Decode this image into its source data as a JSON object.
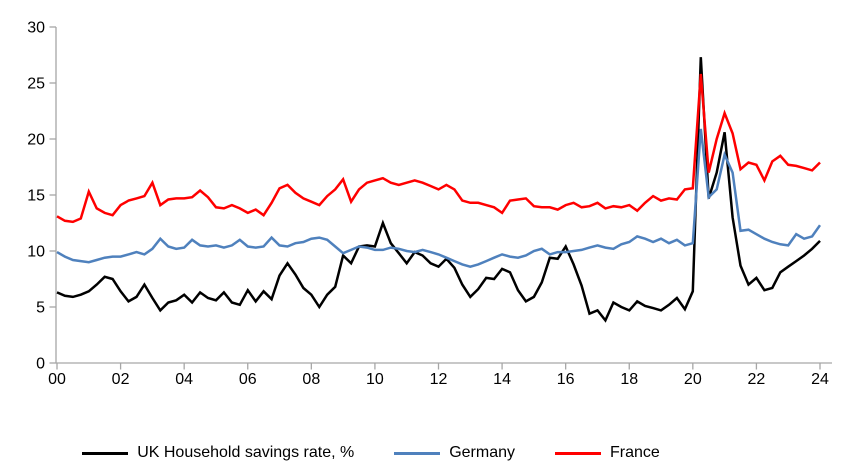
{
  "chart_data": {
    "type": "line",
    "title": "",
    "xlabel": "",
    "ylabel": "",
    "frequency": "quarterly",
    "x_start": "2000 Q1",
    "x_end": "2024 Q1",
    "x_tick_labels": [
      "00",
      "02",
      "04",
      "06",
      "08",
      "10",
      "12",
      "14",
      "16",
      "18",
      "20",
      "22",
      "24"
    ],
    "y_ticks": [
      0,
      5,
      10,
      15,
      20,
      25,
      30
    ],
    "ylim": [
      0,
      30
    ],
    "grid": false,
    "legend_position": "bottom",
    "axis_color": "#A6A6A6",
    "background_color": "#FFFFFF",
    "series": [
      {
        "name": "UK Household savings rate, %",
        "color": "#000000",
        "values": [
          6.3,
          6.0,
          5.9,
          6.1,
          6.4,
          7.0,
          7.7,
          7.5,
          6.4,
          5.5,
          5.9,
          7.0,
          5.8,
          4.7,
          5.4,
          5.6,
          6.1,
          5.4,
          6.3,
          5.8,
          5.6,
          6.3,
          5.4,
          5.2,
          6.5,
          5.5,
          6.4,
          5.7,
          7.8,
          8.9,
          7.9,
          6.7,
          6.1,
          5.0,
          6.1,
          6.8,
          9.6,
          8.9,
          10.4,
          10.5,
          10.4,
          12.5,
          10.7,
          9.8,
          8.9,
          9.9,
          9.6,
          8.9,
          8.6,
          9.3,
          8.5,
          7.0,
          5.9,
          6.6,
          7.6,
          7.5,
          8.4,
          8.1,
          6.5,
          5.5,
          5.9,
          7.2,
          9.4,
          9.3,
          10.4,
          8.8,
          6.9,
          4.4,
          4.7,
          3.8,
          5.4,
          5.0,
          4.7,
          5.5,
          5.1,
          4.9,
          4.7,
          5.2,
          5.8,
          4.8,
          6.4,
          27.3,
          14.7,
          17.0,
          20.6,
          13.0,
          8.7,
          7.0,
          7.6,
          6.5,
          6.7,
          8.1,
          8.6,
          9.1,
          9.6,
          10.2,
          10.9
        ]
      },
      {
        "name": "Germany",
        "color": "#4F81BD",
        "values": [
          9.9,
          9.5,
          9.2,
          9.1,
          9.0,
          9.2,
          9.4,
          9.5,
          9.5,
          9.7,
          9.9,
          9.7,
          10.2,
          11.1,
          10.4,
          10.2,
          10.3,
          11.0,
          10.5,
          10.4,
          10.5,
          10.3,
          10.5,
          11.0,
          10.4,
          10.3,
          10.4,
          11.2,
          10.5,
          10.4,
          10.7,
          10.8,
          11.1,
          11.2,
          11.0,
          10.4,
          9.8,
          10.1,
          10.4,
          10.3,
          10.1,
          10.1,
          10.3,
          10.2,
          10.0,
          9.9,
          10.1,
          9.9,
          9.7,
          9.4,
          9.1,
          8.8,
          8.6,
          8.8,
          9.1,
          9.4,
          9.7,
          9.5,
          9.4,
          9.6,
          10.0,
          10.2,
          9.7,
          9.9,
          9.9,
          10.0,
          10.1,
          10.3,
          10.5,
          10.3,
          10.2,
          10.6,
          10.8,
          11.3,
          11.1,
          10.8,
          11.1,
          10.7,
          11.0,
          10.5,
          10.7,
          20.9,
          14.8,
          15.5,
          18.6,
          17.0,
          11.8,
          11.9,
          11.5,
          11.1,
          10.8,
          10.6,
          10.5,
          11.5,
          11.1,
          11.3,
          12.3
        ]
      },
      {
        "name": "France",
        "color": "#FF0000",
        "values": [
          13.1,
          12.7,
          12.6,
          12.9,
          15.3,
          13.8,
          13.4,
          13.2,
          14.1,
          14.5,
          14.7,
          14.9,
          16.1,
          14.1,
          14.6,
          14.7,
          14.7,
          14.8,
          15.4,
          14.8,
          13.9,
          13.8,
          14.1,
          13.8,
          13.4,
          13.7,
          13.2,
          14.3,
          15.6,
          15.9,
          15.2,
          14.7,
          14.4,
          14.1,
          14.9,
          15.5,
          16.4,
          14.4,
          15.5,
          16.1,
          16.3,
          16.5,
          16.1,
          15.9,
          16.1,
          16.3,
          16.1,
          15.8,
          15.5,
          15.9,
          15.5,
          14.5,
          14.3,
          14.3,
          14.1,
          13.9,
          13.4,
          14.5,
          14.6,
          14.7,
          14.0,
          13.9,
          13.9,
          13.7,
          14.1,
          14.3,
          13.9,
          14.0,
          14.3,
          13.8,
          14.0,
          13.9,
          14.1,
          13.6,
          14.3,
          14.9,
          14.5,
          14.7,
          14.6,
          15.5,
          15.6,
          25.8,
          17.0,
          20.0,
          22.3,
          20.5,
          17.3,
          17.9,
          17.7,
          16.3,
          18.0,
          18.5,
          17.7,
          17.6,
          17.4,
          17.2,
          17.9
        ]
      }
    ]
  }
}
